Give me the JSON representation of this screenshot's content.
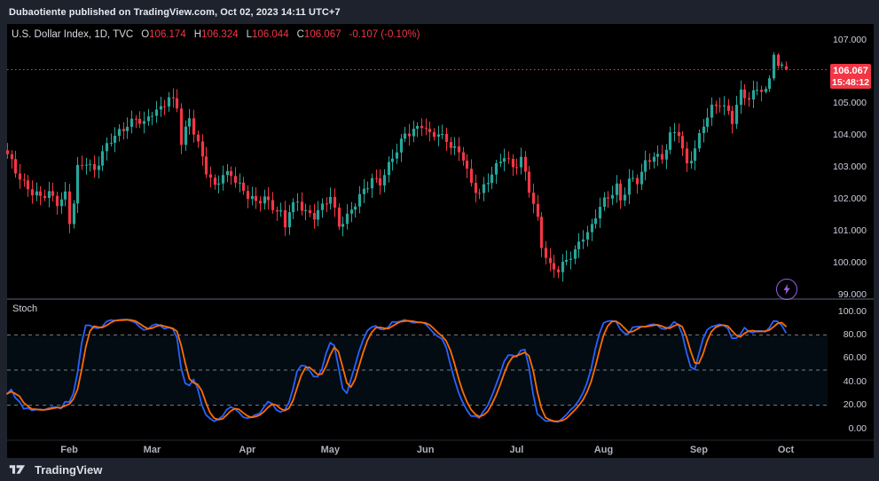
{
  "top_bar": {
    "text": "Dubaotiente published on TradingView.com, Oct 02, 2023 14:11 UTC+7"
  },
  "header": {
    "symbol": "U.S. Dollar Index, 1D, TVC",
    "ohlc": [
      {
        "label": "O",
        "value": "106.174"
      },
      {
        "label": "H",
        "value": "106.324"
      },
      {
        "label": "L",
        "value": "106.044"
      },
      {
        "label": "C",
        "value": "106.067"
      }
    ],
    "change": "-0.107 (-0.10%)"
  },
  "price_badge": {
    "price": "106.067",
    "countdown": "15:48:12",
    "color": "#f23645"
  },
  "price_scale": {
    "labels": [
      {
        "text": "107.000",
        "value": 107
      },
      {
        "text": "106.000",
        "value": 106,
        "hidden": true
      },
      {
        "text": "105.000",
        "value": 105
      },
      {
        "text": "104.000",
        "value": 104
      },
      {
        "text": "103.000",
        "value": 103
      },
      {
        "text": "102.000",
        "value": 102
      },
      {
        "text": "101.000",
        "value": 101
      },
      {
        "text": "100.000",
        "value": 100
      },
      {
        "text": "99.000",
        "value": 99
      }
    ]
  },
  "stoch_panel": {
    "title": "Stoch",
    "scale_labels": [
      {
        "text": "100.00",
        "value": 100
      },
      {
        "text": "80.00",
        "value": 80
      },
      {
        "text": "60.00",
        "value": 60
      },
      {
        "text": "40.00",
        "value": 40
      },
      {
        "text": "20.00",
        "value": 20
      },
      {
        "text": "0.00",
        "value": 0
      }
    ],
    "levels": [
      80,
      50,
      20
    ]
  },
  "time_axis": {
    "months": [
      {
        "label": "Feb",
        "i": 15
      },
      {
        "label": "Mar",
        "i": 35
      },
      {
        "label": "Apr",
        "i": 58
      },
      {
        "label": "May",
        "i": 78
      },
      {
        "label": "Jun",
        "i": 101
      },
      {
        "label": "Jul",
        "i": 123
      },
      {
        "label": "Aug",
        "i": 144
      },
      {
        "label": "Sep",
        "i": 167
      },
      {
        "label": "Oct",
        "i": 188
      }
    ]
  },
  "footer": {
    "brand": "TradingView"
  },
  "colors": {
    "chart_bg": "#000000",
    "panel_bg": "#1e222d",
    "up": "#26a69a",
    "down": "#f23645",
    "current_price_line": "#f23645",
    "k_line": "#2962ff",
    "d_line": "#ff6d00",
    "band_fill": "rgba(33,150,243,0.08)",
    "level_line": "rgba(201,205,214,0.6)",
    "separator": "#2e3340",
    "boost_purple": "#9b5de5"
  },
  "chart_data": {
    "type": "candlestick",
    "symbol": "U.S. Dollar Index",
    "interval": "1D",
    "exchange": "TVC",
    "candle_count": 189,
    "price_axis_range": [
      99,
      107
    ],
    "current_price": 106.067,
    "last_candle": {
      "open": 106.174,
      "high": 106.324,
      "low": 106.044,
      "close": 106.067
    },
    "close_anchors": [
      [
        0,
        103.35
      ],
      [
        2,
        102.9
      ],
      [
        4,
        102.55
      ],
      [
        6,
        102.2
      ],
      [
        8,
        102.0
      ],
      [
        10,
        102.2
      ],
      [
        12,
        101.95
      ],
      [
        14,
        102.15
      ],
      [
        15,
        101.25
      ],
      [
        16,
        101.85
      ],
      [
        17,
        102.9
      ],
      [
        19,
        103.2
      ],
      [
        21,
        102.95
      ],
      [
        23,
        103.45
      ],
      [
        25,
        103.8
      ],
      [
        27,
        104.1
      ],
      [
        29,
        104.4
      ],
      [
        31,
        104.55
      ],
      [
        33,
        104.3
      ],
      [
        35,
        104.7
      ],
      [
        37,
        104.9
      ],
      [
        39,
        105.25
      ],
      [
        41,
        104.85
      ],
      [
        42,
        103.7
      ],
      [
        44,
        104.55
      ],
      [
        46,
        103.8
      ],
      [
        48,
        102.9
      ],
      [
        50,
        102.3
      ],
      [
        52,
        102.75
      ],
      [
        54,
        102.85
      ],
      [
        56,
        102.45
      ],
      [
        58,
        102.05
      ],
      [
        60,
        101.85
      ],
      [
        62,
        102.1
      ],
      [
        64,
        101.8
      ],
      [
        66,
        101.5
      ],
      [
        67,
        101.1
      ],
      [
        68,
        101.6
      ],
      [
        70,
        101.95
      ],
      [
        72,
        101.65
      ],
      [
        74,
        101.45
      ],
      [
        76,
        101.7
      ],
      [
        78,
        102.1
      ],
      [
        80,
        101.25
      ],
      [
        82,
        101.45
      ],
      [
        84,
        101.8
      ],
      [
        86,
        102.25
      ],
      [
        88,
        102.7
      ],
      [
        90,
        102.55
      ],
      [
        92,
        103.0
      ],
      [
        94,
        103.5
      ],
      [
        96,
        104.1
      ],
      [
        98,
        104.2
      ],
      [
        100,
        104.3
      ],
      [
        102,
        103.95
      ],
      [
        104,
        104.1
      ],
      [
        106,
        103.9
      ],
      [
        108,
        103.55
      ],
      [
        110,
        103.25
      ],
      [
        112,
        102.45
      ],
      [
        114,
        102.25
      ],
      [
        116,
        102.6
      ],
      [
        118,
        102.95
      ],
      [
        120,
        103.35
      ],
      [
        122,
        103.05
      ],
      [
        124,
        103.3
      ],
      [
        126,
        102.25
      ],
      [
        128,
        101.3
      ],
      [
        129,
        100.55
      ],
      [
        131,
        99.95
      ],
      [
        133,
        99.8
      ],
      [
        135,
        100.0
      ],
      [
        137,
        100.35
      ],
      [
        139,
        100.9
      ],
      [
        141,
        101.15
      ],
      [
        143,
        101.75
      ],
      [
        145,
        102.0
      ],
      [
        147,
        102.45
      ],
      [
        148,
        102.0
      ],
      [
        150,
        102.6
      ],
      [
        152,
        102.5
      ],
      [
        154,
        103.1
      ],
      [
        156,
        103.45
      ],
      [
        158,
        103.3
      ],
      [
        160,
        103.95
      ],
      [
        162,
        104.05
      ],
      [
        163,
        103.55
      ],
      [
        164,
        103.1
      ],
      [
        166,
        103.65
      ],
      [
        168,
        104.3
      ],
      [
        170,
        104.8
      ],
      [
        172,
        105.05
      ],
      [
        174,
        104.8
      ],
      [
        175,
        104.5
      ],
      [
        177,
        105.3
      ],
      [
        179,
        105.1
      ],
      [
        181,
        105.55
      ],
      [
        183,
        105.45
      ],
      [
        184,
        105.8
      ],
      [
        185,
        106.55
      ],
      [
        186,
        106.15
      ],
      [
        187,
        106.2
      ],
      [
        188,
        106.067
      ]
    ],
    "indicator": {
      "name": "Stoch",
      "k_period": 14,
      "k_smooth": 3,
      "d_smooth": 3,
      "range": [
        0,
        100
      ],
      "bands": {
        "upper": 80,
        "middle": 50,
        "lower": 20
      }
    }
  }
}
